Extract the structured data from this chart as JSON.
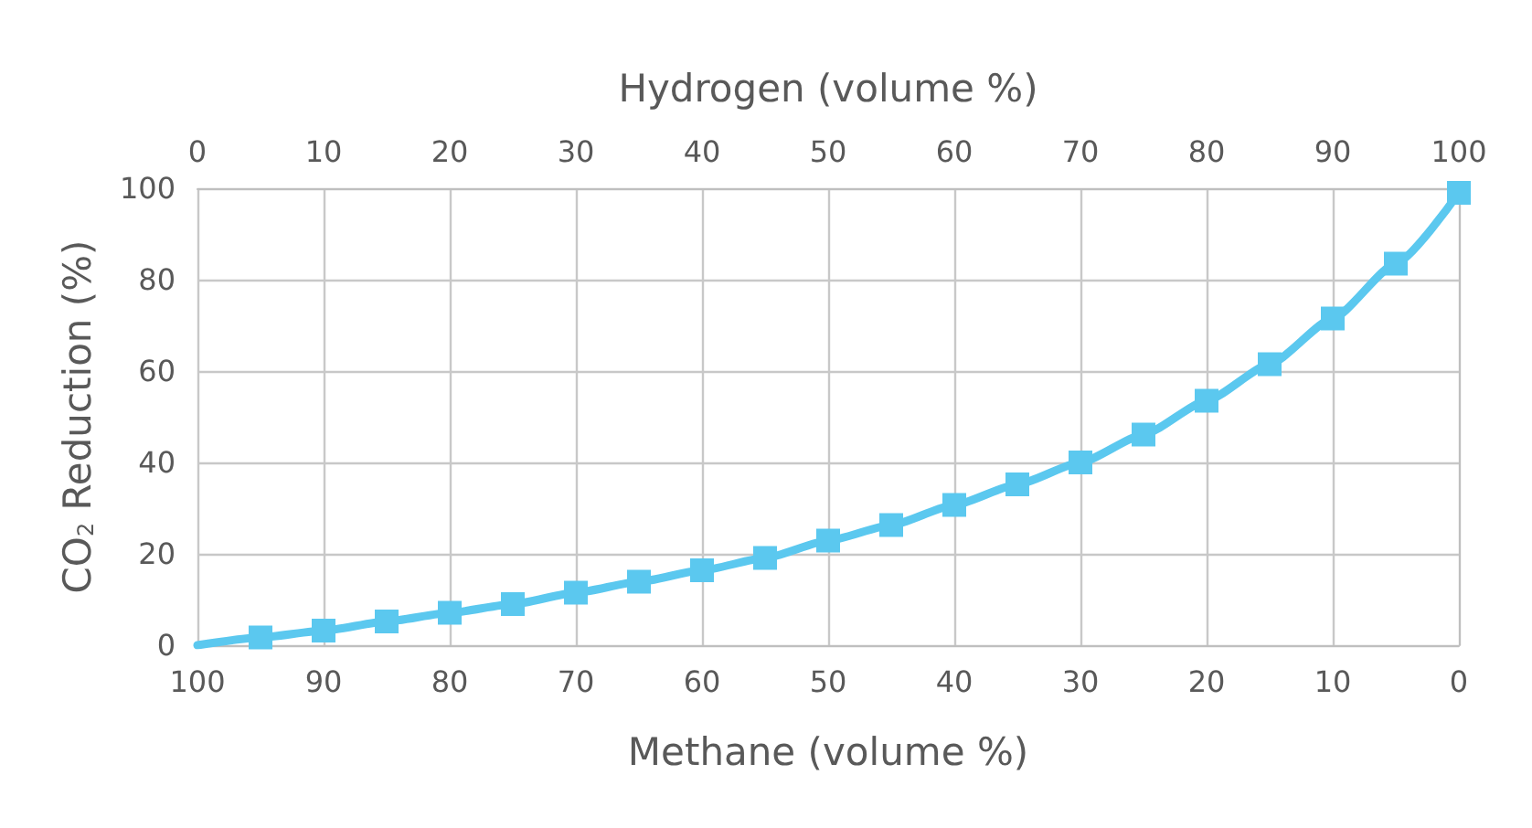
{
  "chart_data": {
    "type": "line",
    "xlabel": "Methane (volume %)",
    "x2label": "Hydrogen (volume %)",
    "ylabel": "CO$_{2}$ Reduction (%)",
    "x": [
      100,
      95,
      90,
      85,
      80,
      75,
      70,
      65,
      60,
      55,
      50,
      45,
      40,
      35,
      30,
      25,
      20,
      15,
      10,
      5,
      0
    ],
    "series": [
      {
        "color": "#5bc8ef",
        "values": [
          0,
          1.7,
          3.2,
          5.2,
          7.1,
          9.0,
          11.5,
          13.9,
          16.4,
          19.1,
          22.9,
          26.3,
          30.7,
          35.2,
          40.0,
          46.1,
          53.5,
          61.5,
          71.5,
          83.5,
          99.0
        ]
      }
    ],
    "xlim": [
      100,
      0
    ],
    "xticks": [
      100,
      90,
      80,
      70,
      60,
      50,
      40,
      30,
      20,
      10,
      0
    ],
    "x2lim": [
      0,
      100
    ],
    "x2ticks": [
      0,
      10,
      20,
      30,
      40,
      50,
      60,
      70,
      80,
      90,
      100
    ],
    "ylim": [
      0,
      100
    ],
    "yticks": [
      0,
      20,
      40,
      60,
      80,
      100
    ],
    "grid": true,
    "marker": "square",
    "line_style": "solid"
  }
}
